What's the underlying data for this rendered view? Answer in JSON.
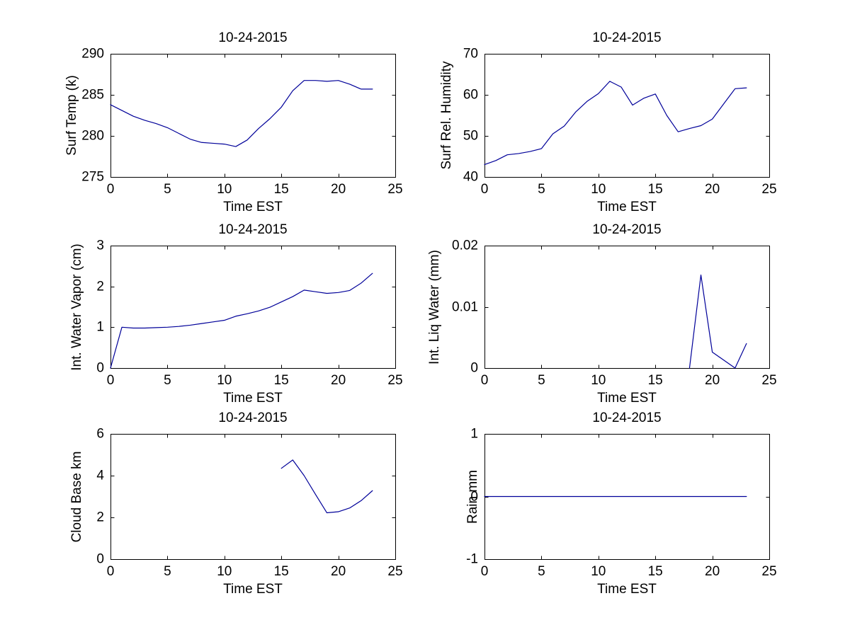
{
  "figure": {
    "background": "#ffffff",
    "line_color": "#000099",
    "axis_color": "#000000",
    "text_color": "#000000"
  },
  "chart_data": [
    {
      "type": "line",
      "title": "10-24-2015",
      "xlabel": "Time EST",
      "ylabel": "Surf Temp (k)",
      "xlim": [
        0,
        25
      ],
      "ylim": [
        275,
        290
      ],
      "xticks": [
        0,
        5,
        10,
        15,
        20,
        25
      ],
      "xtick_labels": [
        "0",
        "5",
        "10",
        "15",
        "20",
        "25"
      ],
      "yticks": [
        275,
        280,
        285,
        290
      ],
      "ytick_labels": [
        "275",
        "280",
        "285",
        "290"
      ],
      "grid": false,
      "x": [
        0,
        1,
        2,
        3,
        4,
        5,
        6,
        7,
        8,
        9,
        10,
        11,
        12,
        13,
        14,
        15,
        16,
        17,
        18,
        19,
        20,
        21,
        22,
        23
      ],
      "y": [
        283.8,
        283.1,
        282.4,
        281.9,
        281.5,
        281.0,
        280.3,
        279.6,
        279.2,
        279.1,
        279.0,
        278.7,
        279.5,
        280.9,
        282.1,
        283.5,
        285.5,
        286.75,
        286.75,
        286.65,
        286.75,
        286.3,
        285.7,
        285.7
      ]
    },
    {
      "type": "line",
      "title": "10-24-2015",
      "xlabel": "Time EST",
      "ylabel": "Surf Rel. Humidity",
      "xlim": [
        0,
        25
      ],
      "ylim": [
        40,
        70
      ],
      "xticks": [
        0,
        5,
        10,
        15,
        20,
        25
      ],
      "xtick_labels": [
        "0",
        "5",
        "10",
        "15",
        "20",
        "25"
      ],
      "yticks": [
        40,
        50,
        60,
        70
      ],
      "ytick_labels": [
        "40",
        "50",
        "60",
        "70"
      ],
      "grid": false,
      "x": [
        0,
        1,
        2,
        3,
        4,
        5,
        6,
        7,
        8,
        9,
        10,
        11,
        12,
        13,
        14,
        15,
        16,
        17,
        18,
        19,
        20,
        21,
        22,
        23
      ],
      "y": [
        43.0,
        44.0,
        45.4,
        45.7,
        46.2,
        46.9,
        50.5,
        52.4,
        55.8,
        58.4,
        60.3,
        63.3,
        61.9,
        57.5,
        59.2,
        60.2,
        55.0,
        51.0,
        51.8,
        52.5,
        54.1,
        57.8,
        61.5,
        61.7
      ]
    },
    {
      "type": "line",
      "title": "10-24-2015",
      "xlabel": "Time EST",
      "ylabel": "Int. Water Vapor (cm)",
      "xlim": [
        0,
        25
      ],
      "ylim": [
        0,
        3
      ],
      "xticks": [
        0,
        5,
        10,
        15,
        20,
        25
      ],
      "xtick_labels": [
        "0",
        "5",
        "10",
        "15",
        "20",
        "25"
      ],
      "yticks": [
        0,
        1,
        2,
        3
      ],
      "ytick_labels": [
        "0",
        "1",
        "2",
        "3"
      ],
      "grid": false,
      "x": [
        0,
        1,
        2,
        3,
        4,
        5,
        6,
        7,
        8,
        9,
        10,
        11,
        12,
        13,
        14,
        15,
        16,
        17,
        18,
        19,
        20,
        21,
        22,
        23
      ],
      "y": [
        0,
        1.0,
        0.98,
        0.98,
        0.99,
        1.0,
        1.02,
        1.05,
        1.09,
        1.13,
        1.17,
        1.27,
        1.33,
        1.4,
        1.49,
        1.62,
        1.75,
        1.91,
        1.87,
        1.83,
        1.85,
        1.9,
        2.08,
        2.32
      ]
    },
    {
      "type": "line",
      "title": "10-24-2015",
      "xlabel": "Time EST",
      "ylabel": "Int. Liq Water (mm)",
      "xlim": [
        0,
        25
      ],
      "ylim": [
        0,
        0.02
      ],
      "xticks": [
        0,
        5,
        10,
        15,
        20,
        25
      ],
      "xtick_labels": [
        "0",
        "5",
        "10",
        "15",
        "20",
        "25"
      ],
      "yticks": [
        0,
        0.01,
        0.02
      ],
      "ytick_labels": [
        "0",
        "0.01",
        "0.02"
      ],
      "grid": false,
      "x": [
        0,
        1,
        2,
        3,
        4,
        5,
        6,
        7,
        8,
        9,
        10,
        11,
        12,
        13,
        14,
        15,
        16,
        17,
        18,
        19,
        20,
        21,
        22,
        23
      ],
      "y": [
        null,
        null,
        null,
        null,
        null,
        null,
        null,
        null,
        null,
        null,
        null,
        null,
        null,
        null,
        null,
        null,
        null,
        null,
        0,
        0.0152,
        0.0026,
        0.0013,
        0,
        0.004
      ]
    },
    {
      "type": "line",
      "title": "10-24-2015",
      "xlabel": "Time EST",
      "ylabel": "Cloud Base km",
      "xlim": [
        0,
        25
      ],
      "ylim": [
        0,
        6
      ],
      "xticks": [
        0,
        5,
        10,
        15,
        20,
        25
      ],
      "xtick_labels": [
        "0",
        "5",
        "10",
        "15",
        "20",
        "25"
      ],
      "yticks": [
        0,
        2,
        4,
        6
      ],
      "ytick_labels": [
        "0",
        "2",
        "4",
        "6"
      ],
      "grid": false,
      "x": [
        0,
        1,
        2,
        3,
        4,
        5,
        6,
        7,
        8,
        9,
        10,
        11,
        12,
        13,
        14,
        15,
        16,
        17,
        18,
        19,
        20,
        21,
        22,
        23
      ],
      "y": [
        null,
        null,
        null,
        null,
        null,
        null,
        null,
        null,
        null,
        null,
        null,
        null,
        null,
        null,
        null,
        4.35,
        4.75,
        4.0,
        3.1,
        2.22,
        2.27,
        2.45,
        2.8,
        3.28
      ]
    },
    {
      "type": "line",
      "title": "10-24-2015",
      "xlabel": "Time EST",
      "ylabel": "Rain mm",
      "xlim": [
        0,
        25
      ],
      "ylim": [
        -1,
        1
      ],
      "xticks": [
        0,
        5,
        10,
        15,
        20,
        25
      ],
      "xtick_labels": [
        "0",
        "5",
        "10",
        "15",
        "20",
        "25"
      ],
      "yticks": [
        -1,
        0,
        1
      ],
      "ytick_labels": [
        "-1",
        "0",
        "1"
      ],
      "grid": false,
      "x": [
        0,
        1,
        2,
        3,
        4,
        5,
        6,
        7,
        8,
        9,
        10,
        11,
        12,
        13,
        14,
        15,
        16,
        17,
        18,
        19,
        20,
        21,
        22,
        23
      ],
      "y": [
        0,
        0,
        0,
        0,
        0,
        0,
        0,
        0,
        0,
        0,
        0,
        0,
        0,
        0,
        0,
        0,
        0,
        0,
        0,
        0,
        0,
        0,
        0,
        0
      ]
    }
  ]
}
